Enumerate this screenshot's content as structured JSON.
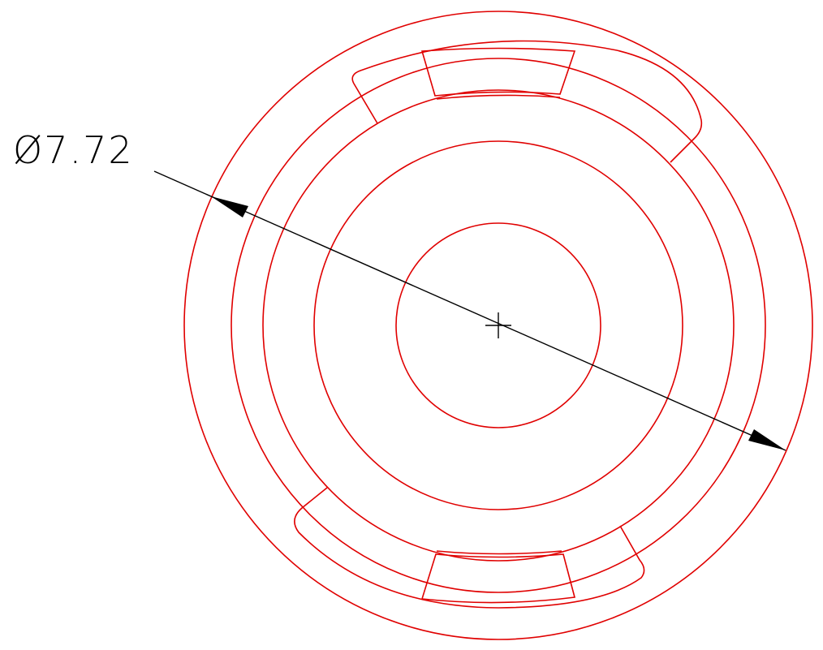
{
  "dimension": {
    "label": "Ø7.72"
  },
  "colors": {
    "geometry": "#e00000",
    "annotation": "#000000",
    "background": "#ffffff"
  }
}
